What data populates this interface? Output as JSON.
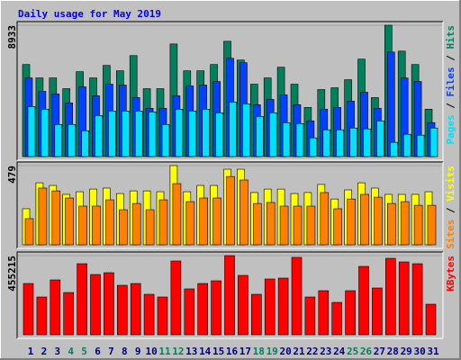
{
  "title": "Daily usage for May 2019",
  "legend_separator": " / ",
  "chart_data": [
    {
      "type": "bar",
      "ylim": [
        0,
        8933
      ],
      "yticks": [
        8933
      ],
      "series": [
        {
          "name": "Hits",
          "color": "#00805C",
          "values": [
            6259,
            5348,
            5348,
            4618,
            5773,
            5348,
            6199,
            5834,
            6867,
            4618,
            4618,
            7657,
            5834,
            5834,
            6259,
            7839,
            6563,
            4922,
            5348,
            6077,
            4922,
            3342,
            4558,
            4679,
            5226,
            6624,
            4011,
            8933,
            7171,
            6259,
            3221
          ]
        },
        {
          "name": "Files",
          "color": "#0040FF",
          "values": [
            5348,
            4436,
            4254,
            3646,
            4740,
            4132,
            4922,
            4862,
            4011,
            3282,
            3282,
            4132,
            4801,
            4862,
            5105,
            6685,
            6381,
            3525,
            3889,
            4193,
            3525,
            2431,
            3221,
            3342,
            3768,
            4375,
            3282,
            7110,
            5348,
            5105,
            2309
          ]
        },
        {
          "name": "Pages",
          "color": "#00E0FF",
          "values": [
            3403,
            3221,
            2188,
            2188,
            1762,
            2795,
            3099,
            3099,
            3099,
            3038,
            2188,
            3221,
            3099,
            3221,
            2978,
            3707,
            3585,
            2735,
            2978,
            2309,
            2249,
            1276,
            1823,
            1823,
            1945,
            1884,
            2431,
            972,
            1519,
            1458,
            1945
          ]
        }
      ]
    },
    {
      "type": "bar",
      "ylim": [
        0,
        479
      ],
      "yticks": [
        479
      ],
      "series": [
        {
          "name": "Visits",
          "color": "#FFFF00",
          "values": [
            218,
            375,
            359,
            305,
            321,
            337,
            343,
            310,
            326,
            326,
            321,
            479,
            321,
            359,
            359,
            457,
            457,
            316,
            337,
            337,
            310,
            316,
            365,
            277,
            332,
            375,
            343,
            305,
            305,
            305,
            321
          ]
        },
        {
          "name": "Sites",
          "color": "#FF8000",
          "values": [
            158,
            343,
            326,
            283,
            234,
            234,
            272,
            212,
            250,
            212,
            272,
            370,
            261,
            283,
            283,
            413,
            392,
            250,
            256,
            234,
            234,
            234,
            316,
            218,
            277,
            305,
            288,
            250,
            261,
            239,
            239
          ]
        }
      ]
    },
    {
      "type": "bar",
      "ylim": [
        0,
        455215
      ],
      "yticks": [
        455215
      ],
      "categories": [
        "1",
        "2",
        "3",
        "4",
        "5",
        "6",
        "7",
        "8",
        "9",
        "10",
        "11",
        "12",
        "13",
        "14",
        "15",
        "16",
        "17",
        "18",
        "19",
        "20",
        "21",
        "22",
        "23",
        "24",
        "25",
        "26",
        "27",
        "28",
        "29",
        "30",
        "31"
      ],
      "category_colors": [
        "#000080",
        "#000080",
        "#000080",
        "#00805C",
        "#00805C",
        "#000080",
        "#000080",
        "#000080",
        "#000080",
        "#000080",
        "#00805C",
        "#00805C",
        "#000080",
        "#000080",
        "#000080",
        "#000080",
        "#000080",
        "#00805C",
        "#00805C",
        "#000080",
        "#000080",
        "#000080",
        "#000080",
        "#000080",
        "#00805C",
        "#00805C",
        "#000080",
        "#000080",
        "#000080",
        "#000080",
        "#000080"
      ],
      "series": [
        {
          "name": "KBytes",
          "color": "#FF0000",
          "values": [
            294861,
            217266,
            315553,
            243131,
            408667,
            346591,
            356937,
            284515,
            294861,
            232785,
            217266,
            424186,
            263823,
            294861,
            310380,
            455215,
            341418,
            232785,
            320726,
            325899,
            444878,
            217266,
            253477,
            186228,
            253477,
            393148,
            268996,
            439705,
            419013,
            408667,
            175882
          ]
        }
      ]
    }
  ]
}
